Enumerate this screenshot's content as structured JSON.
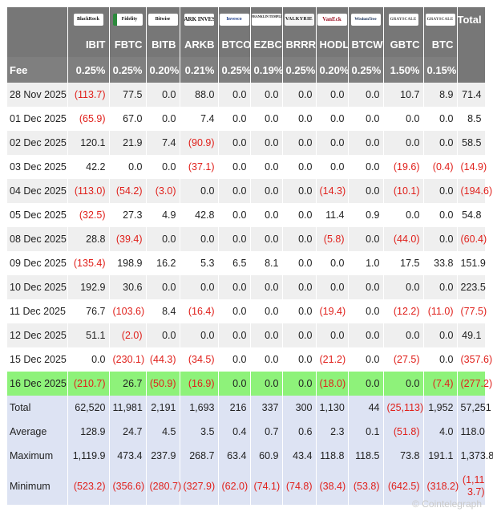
{
  "logos": {
    "ibit": "BlackRock",
    "fbtc": "Fidelity",
    "bitb": "Bitwise",
    "arkb": "ARK INVEST",
    "btco": "Invesco",
    "ezbc": "FRANKLIN TEMPLETON",
    "brrr": "VALKYRIE",
    "hodl": "VanEck",
    "btcw": "WisdomTree",
    "gbtc": "GRAYSCALE",
    "btc": "GRAYSCALE"
  },
  "total_label": "Total",
  "tickers": [
    "IBIT",
    "FBTC",
    "BITB",
    "ARKB",
    "BTCO",
    "EZBC",
    "BRRR",
    "HODL",
    "BTCW",
    "GBTC",
    "BTC"
  ],
  "fee": {
    "label": "Fee",
    "values": [
      "0.25%",
      "0.25%",
      "0.20%",
      "0.21%",
      "0.25%",
      "0.19%",
      "0.25%",
      "0.20%",
      "0.25%",
      "1.50%",
      "0.15%"
    ]
  },
  "rows": [
    {
      "date": "28 Nov 2025",
      "values": [
        "(113.7)",
        "77.5",
        "0.0",
        "88.0",
        "0.0",
        "0.0",
        "0.0",
        "0.0",
        "0.0",
        "10.7",
        "8.9"
      ],
      "total": "71.4"
    },
    {
      "date": "01 Dec 2025",
      "values": [
        "(65.9)",
        "67.0",
        "0.0",
        "7.4",
        "0.0",
        "0.0",
        "0.0",
        "0.0",
        "0.0",
        "0.0",
        "0.0"
      ],
      "total": "8.5"
    },
    {
      "date": "02 Dec 2025",
      "values": [
        "120.1",
        "21.9",
        "7.4",
        "(90.9)",
        "0.0",
        "0.0",
        "0.0",
        "0.0",
        "0.0",
        "0.0",
        "0.0"
      ],
      "total": "58.5"
    },
    {
      "date": "03 Dec 2025",
      "values": [
        "42.2",
        "0.0",
        "0.0",
        "(37.1)",
        "0.0",
        "0.0",
        "0.0",
        "0.0",
        "0.0",
        "(19.6)",
        "(0.4)"
      ],
      "total": "(14.9)"
    },
    {
      "date": "04 Dec 2025",
      "values": [
        "(113.0)",
        "(54.2)",
        "(3.0)",
        "0.0",
        "0.0",
        "0.0",
        "0.0",
        "(14.3)",
        "0.0",
        "(10.1)",
        "0.0"
      ],
      "total": "(194.6)"
    },
    {
      "date": "05 Dec 2025",
      "values": [
        "(32.5)",
        "27.3",
        "4.9",
        "42.8",
        "0.0",
        "0.0",
        "0.0",
        "11.4",
        "0.9",
        "0.0",
        "0.0"
      ],
      "total": "54.8"
    },
    {
      "date": "08 Dec 2025",
      "values": [
        "28.8",
        "(39.4)",
        "0.0",
        "0.0",
        "0.0",
        "0.0",
        "0.0",
        "(5.8)",
        "0.0",
        "(44.0)",
        "0.0"
      ],
      "total": "(60.4)"
    },
    {
      "date": "09 Dec 2025",
      "values": [
        "(135.4)",
        "198.9",
        "16.2",
        "5.3",
        "6.5",
        "8.1",
        "0.0",
        "0.0",
        "1.0",
        "17.5",
        "33.8"
      ],
      "total": "151.9"
    },
    {
      "date": "10 Dec 2025",
      "values": [
        "192.9",
        "30.6",
        "0.0",
        "0.0",
        "0.0",
        "0.0",
        "0.0",
        "0.0",
        "0.0",
        "0.0",
        "0.0"
      ],
      "total": "223.5"
    },
    {
      "date": "11 Dec 2025",
      "values": [
        "76.7",
        "(103.6)",
        "8.4",
        "(16.4)",
        "0.0",
        "0.0",
        "0.0",
        "(19.4)",
        "0.0",
        "(12.2)",
        "(11.0)"
      ],
      "total": "(77.5)"
    },
    {
      "date": "12 Dec 2025",
      "values": [
        "51.1",
        "(2.0)",
        "0.0",
        "0.0",
        "0.0",
        "0.0",
        "0.0",
        "0.0",
        "0.0",
        "0.0",
        "0.0"
      ],
      "total": "49.1"
    },
    {
      "date": "15 Dec 2025",
      "values": [
        "0.0",
        "(230.1)",
        "(44.3)",
        "(34.5)",
        "0.0",
        "0.0",
        "0.0",
        "(21.2)",
        "0.0",
        "(27.5)",
        "0.0"
      ],
      "total": "(357.6)"
    },
    {
      "date": "16 Dec 2025",
      "values": [
        "(210.7)",
        "26.7",
        "(50.9)",
        "(16.9)",
        "0.0",
        "0.0",
        "0.0",
        "(18.0)",
        "0.0",
        "0.0",
        "(7.4)"
      ],
      "total": "(277.2)",
      "highlight": true
    }
  ],
  "stats": [
    {
      "label": "Total",
      "values": [
        "62,520",
        "11,981",
        "2,191",
        "1,693",
        "216",
        "337",
        "300",
        "1,130",
        "44",
        "(25,113)",
        "1,952"
      ],
      "total": "57,251"
    },
    {
      "label": "Average",
      "values": [
        "128.9",
        "24.7",
        "4.5",
        "3.5",
        "0.4",
        "0.7",
        "0.6",
        "2.3",
        "0.1",
        "(51.8)",
        "4.0"
      ],
      "total": "118.0"
    },
    {
      "label": "Maximum",
      "values": [
        "1,119.9",
        "473.4",
        "237.9",
        "268.7",
        "63.4",
        "60.9",
        "43.4",
        "118.8",
        "118.5",
        "73.8",
        "191.1"
      ],
      "total": "1,373.8"
    },
    {
      "label": "Minimum",
      "values": [
        "(523.2)",
        "(356.6)",
        "(280.7)",
        "(327.9)",
        "(62.0)",
        "(74.1)",
        "(74.8)",
        "(38.4)",
        "(53.8)",
        "(642.5)",
        "(318.2)"
      ],
      "total": "(1,113.7)"
    }
  ],
  "watermark": "© Cointelegraph",
  "colors": {
    "header_bg": "#777777",
    "negative": "#e0201b",
    "highlight_row": "#8ef27a",
    "stats_bg": "#dde3f3",
    "row_alt": "#efefef"
  }
}
